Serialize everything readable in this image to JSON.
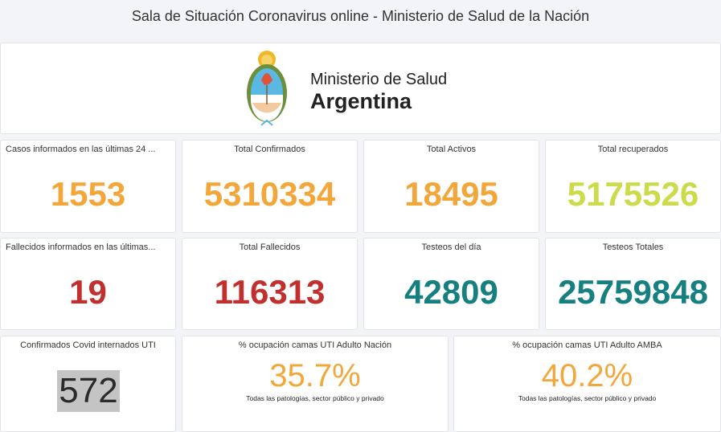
{
  "header": {
    "title": "Sala de Situación Coronavirus online - Ministerio de Salud de la Nación"
  },
  "logo": {
    "line1": "Ministerio de Salud",
    "line2": "Argentina"
  },
  "colors": {
    "orange": "#f3a63a",
    "yellow_green": "#cbdb4a",
    "red": "#c1302e",
    "teal": "#168081",
    "dark": "#2b2b2b",
    "highlight": "#c4c4c4"
  },
  "cards": [
    {
      "label": "Casos informados en las últimas 24 ...",
      "value": "1553"
    },
    {
      "label": "Total Confirmados",
      "value": "5310334"
    },
    {
      "label": "Total Activos",
      "value": "18495"
    },
    {
      "label": "Total recuperados",
      "value": "5175526"
    },
    {
      "label": "Fallecidos informados en las últimas...",
      "value": "19"
    },
    {
      "label": "Total Fallecidos",
      "value": "116313"
    },
    {
      "label": "Testeos del día",
      "value": "42809"
    },
    {
      "label": "Testeos Totales",
      "value": "25759848"
    },
    {
      "label": "Confirmados Covid internados UTI",
      "value": "572"
    },
    {
      "label": "% ocupación camas UTI Adulto Nación",
      "value": "35.7%",
      "note": "Todas las patologías, sector público y privado"
    },
    {
      "label": "% ocupación camas UTI Adulto AMBA",
      "value": "40.2%",
      "note": "Todas las patologías, sector público y privado"
    }
  ]
}
